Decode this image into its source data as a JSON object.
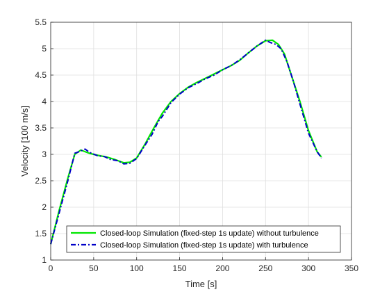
{
  "chart_data": {
    "type": "line",
    "title": "",
    "xlabel": "Time [s]",
    "ylabel": "Velocity [100 m/s]",
    "xlim": [
      0,
      350
    ],
    "ylim": [
      1,
      5.5
    ],
    "xticks": [
      0,
      50,
      100,
      150,
      200,
      250,
      300,
      350
    ],
    "yticks": [
      1,
      1.5,
      2,
      2.5,
      3,
      3.5,
      4,
      4.5,
      5,
      5.5
    ],
    "xtick_labels": [
      "0",
      "50",
      "100",
      "150",
      "200",
      "250",
      "300",
      "350"
    ],
    "ytick_labels": [
      "1",
      "1.5",
      "2",
      "2.5",
      "3",
      "3.5",
      "4",
      "4.5",
      "5",
      "5.5"
    ],
    "grid": true,
    "legend_position": "bottom-right",
    "series": [
      {
        "name": "Closed-loop Simulation (fixed-step 1s update) without turbulence",
        "color": "#00e600",
        "style": "solid",
        "x": [
          0,
          10,
          20,
          28,
          35,
          45,
          55,
          65,
          75,
          85,
          92,
          100,
          110,
          120,
          130,
          140,
          150,
          160,
          170,
          180,
          190,
          200,
          210,
          220,
          230,
          240,
          250,
          258,
          265,
          272,
          280,
          290,
          300,
          310,
          315
        ],
        "y": [
          1.3,
          1.95,
          2.55,
          3.0,
          3.08,
          3.02,
          2.98,
          2.95,
          2.9,
          2.84,
          2.85,
          2.93,
          3.2,
          3.5,
          3.78,
          4.0,
          4.15,
          4.27,
          4.36,
          4.44,
          4.52,
          4.6,
          4.68,
          4.78,
          4.92,
          5.05,
          5.15,
          5.16,
          5.08,
          4.9,
          4.5,
          4.0,
          3.45,
          3.05,
          2.95
        ]
      },
      {
        "name": "Closed-loop Simulation (fixed-step 1s update) with turbulence",
        "color": "#0000c8",
        "style": "dash-dot",
        "x": [
          0,
          10,
          20,
          28,
          33,
          40,
          45,
          55,
          62,
          70,
          78,
          85,
          92,
          100,
          105,
          110,
          118,
          125,
          130,
          140,
          150,
          160,
          170,
          180,
          190,
          200,
          210,
          220,
          230,
          240,
          250,
          255,
          262,
          268,
          275,
          282,
          290,
          300,
          310,
          315
        ],
        "y": [
          1.3,
          1.9,
          2.5,
          3.02,
          3.05,
          3.1,
          3.04,
          2.97,
          2.96,
          2.9,
          2.88,
          2.82,
          2.83,
          2.92,
          3.05,
          3.18,
          3.38,
          3.62,
          3.72,
          3.98,
          4.14,
          4.26,
          4.34,
          4.43,
          4.5,
          4.6,
          4.68,
          4.79,
          4.92,
          5.05,
          5.16,
          5.12,
          5.08,
          5.0,
          4.75,
          4.4,
          3.95,
          3.4,
          3.05,
          2.93
        ]
      }
    ]
  }
}
